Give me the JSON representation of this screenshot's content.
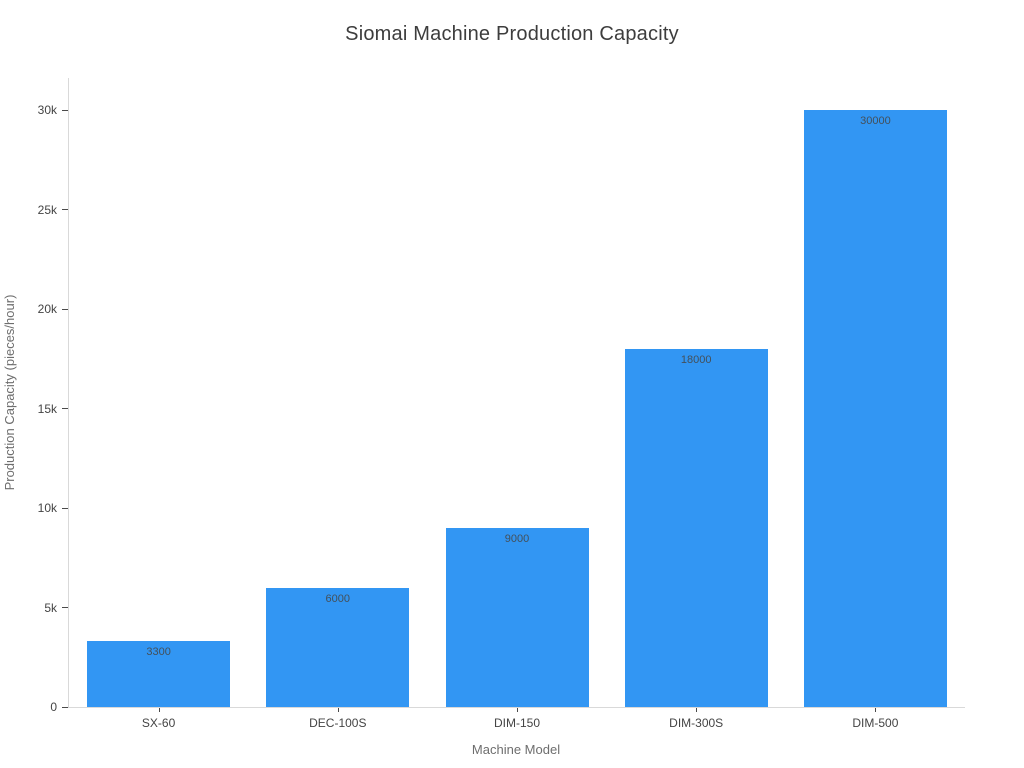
{
  "chart_data": {
    "type": "bar",
    "title": "Siomai Machine Production Capacity",
    "xlabel": "Machine Model",
    "ylabel": "Production Capacity (pieces/hour)",
    "categories": [
      "SX-60",
      "DEC-100S",
      "DIM-150",
      "DIM-300S",
      "DIM-500"
    ],
    "values": [
      3300,
      6000,
      9000,
      18000,
      30000
    ],
    "bar_labels": [
      "3300",
      "6000",
      "9000",
      "18000",
      "30000"
    ],
    "yticks": {
      "values": [
        0,
        5000,
        10000,
        15000,
        20000,
        25000,
        30000
      ],
      "labels": [
        "0",
        "5k",
        "10k",
        "15k",
        "20k",
        "25k",
        "30k"
      ]
    },
    "ylim": [
      0,
      31600
    ],
    "grid": false,
    "legend": "none",
    "colors": {
      "bar": "#3296f3",
      "title_text": "#3d3d3d",
      "tick_text": "#444444",
      "axis_title_text": "#6e6e6e",
      "bar_label_text": "#44505a",
      "axis_line": "#d9d9d9",
      "background": "#ffffff"
    }
  }
}
